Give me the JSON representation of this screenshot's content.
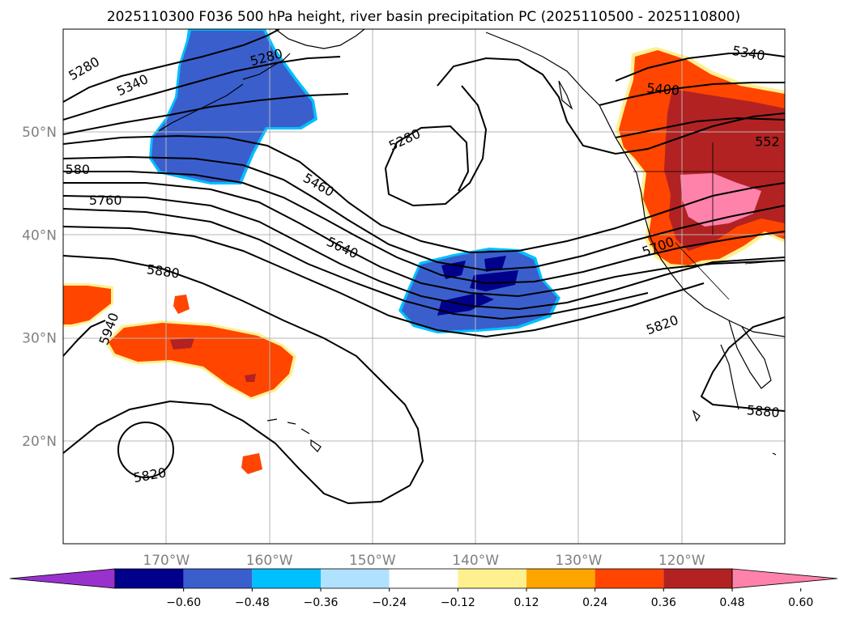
{
  "title": "2025110300 F036 500 hPa height, river basin precipitation PC (2025110500 - 2025110800)",
  "map": {
    "lon_range": [
      -180,
      -110
    ],
    "lat_range": [
      10,
      60
    ],
    "lon_ticks": [
      {
        "value": -170,
        "label": "170°W"
      },
      {
        "value": -160,
        "label": "160°W"
      },
      {
        "value": -150,
        "label": "150°W"
      },
      {
        "value": -140,
        "label": "140°W"
      },
      {
        "value": -130,
        "label": "130°W"
      },
      {
        "value": -120,
        "label": "120°W"
      }
    ],
    "lat_ticks": [
      {
        "value": 50,
        "label": "50°N"
      },
      {
        "value": 40,
        "label": "40°N"
      },
      {
        "value": 30,
        "label": "30°N"
      },
      {
        "value": 20,
        "label": "20°N"
      }
    ]
  },
  "contour_labels": [
    {
      "text": "5280",
      "lon": -178,
      "lat": 56.2
    },
    {
      "text": "5340",
      "lon": -173.3,
      "lat": 54.6
    },
    {
      "text": "5280",
      "lon": -160.3,
      "lat": 57.3
    },
    {
      "text": "5280",
      "lon": -146.9,
      "lat": 49.3
    },
    {
      "text": "5340",
      "lon": -113.5,
      "lat": 57.7
    },
    {
      "text": "5400",
      "lon": -121.8,
      "lat": 54.2
    },
    {
      "text": "552",
      "lon": -111.7,
      "lat": 49.1
    },
    {
      "text": "580",
      "lon": -178.6,
      "lat": 46.4
    },
    {
      "text": "5760",
      "lon": -175.9,
      "lat": 43.4
    },
    {
      "text": "5460",
      "lon": -155.2,
      "lat": 44.9
    },
    {
      "text": "5640",
      "lon": -152.9,
      "lat": 38.8
    },
    {
      "text": "5700",
      "lon": -122.3,
      "lat": 38.9
    },
    {
      "text": "5880",
      "lon": -170.3,
      "lat": 36.5
    },
    {
      "text": "5820",
      "lon": -121.9,
      "lat": 31.3
    },
    {
      "text": "5940",
      "lon": -175.6,
      "lat": 30.9
    },
    {
      "text": "5880",
      "lon": -112.1,
      "lat": 22.9
    },
    {
      "text": "5820",
      "lon": -171.6,
      "lat": 16.7
    }
  ],
  "colorbar": {
    "colors": [
      "#9932cc",
      "#00008b",
      "#3a5fcd",
      "#00bfff",
      "#b0e2ff",
      "#ffffff",
      "#fff08f",
      "#ffa500",
      "#ff4500",
      "#b22222",
      "#ff82ab"
    ],
    "ticks": [
      "−0.60",
      "−0.48",
      "−0.36",
      "−0.24",
      "−0.12",
      "0.12",
      "0.24",
      "0.36",
      "0.48",
      "0.60"
    ]
  },
  "legend_colors": {
    "grid": "#b4b4b4",
    "contour": "#000000",
    "tick_text": "#808080"
  }
}
